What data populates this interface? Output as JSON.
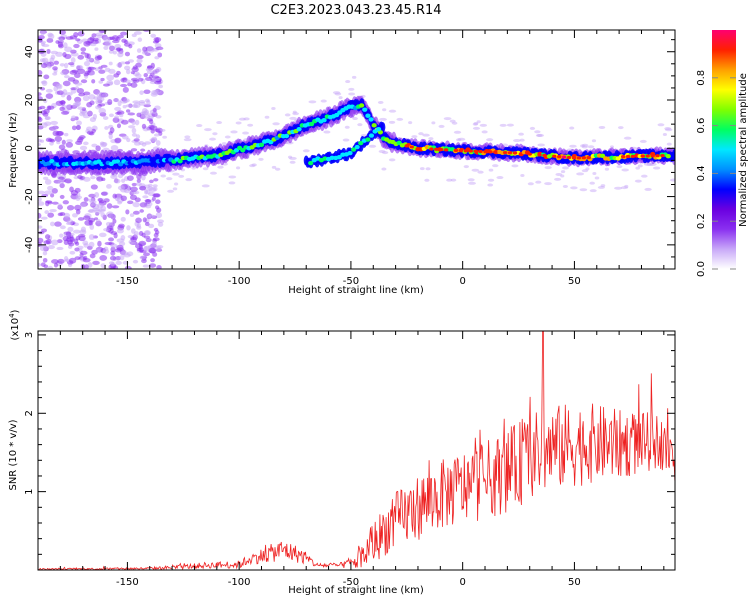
{
  "title": "C2E3.2023.043.23.45.R14",
  "chart_data": [
    {
      "type": "heatmap",
      "name": "spectrogram",
      "xlabel": "Height of straight line (km)",
      "ylabel": "Frequency (Hz)",
      "xlim": [
        -190,
        95
      ],
      "ylim": [
        -50,
        49
      ],
      "xticks": [
        -150,
        -100,
        -50,
        0,
        50
      ],
      "yticks": [
        -40,
        -20,
        0,
        20,
        40
      ],
      "ridge": {
        "x": [
          -190,
          -150,
          -130,
          -110,
          -90,
          -80,
          -72,
          -62,
          -50,
          -45,
          -40,
          -35,
          -30,
          -25,
          -20,
          0,
          25,
          50,
          90
        ],
        "freq": [
          -6,
          -6,
          -5,
          -3,
          2,
          5,
          9,
          12,
          17,
          18,
          10,
          4,
          2,
          1,
          0,
          -1,
          -2,
          -4,
          -3
        ]
      },
      "secondary_ridge": {
        "x": [
          -70,
          -60,
          -50,
          -45,
          -40,
          -35
        ],
        "freq": [
          -6,
          -4,
          -2,
          2,
          6,
          10
        ]
      },
      "colorbar": {
        "label": "Normalized spectral amplitude",
        "ticks": [
          0.0,
          0.2,
          0.4,
          0.6,
          0.8
        ],
        "tick_labels": [
          "0.0",
          "0.2",
          "0.4",
          "0.6",
          "0.8"
        ],
        "range": [
          0,
          1
        ],
        "colors": [
          "#ffffff",
          "#c8a8f8",
          "#8a30f0",
          "#6a00e0",
          "#0000ff",
          "#0090ff",
          "#00e8ff",
          "#00ff60",
          "#80ff00",
          "#ffff00",
          "#ffa000",
          "#ff2000",
          "#ff0070"
        ]
      }
    },
    {
      "type": "line",
      "name": "snr",
      "xlabel": "Height of straight line (km)",
      "ylabel": "SNR (10 * v/v)",
      "yscale_label": "(x10",
      "yscale_exp": "4",
      "yscale_close": ")",
      "xlim": [
        -190,
        95
      ],
      "ylim": [
        0,
        3.05
      ],
      "xticks": [
        -150,
        -100,
        -50,
        0,
        50
      ],
      "yticks": [
        1,
        2,
        3
      ],
      "color": "#ee2222",
      "envelope": {
        "x": [
          -190,
          -140,
          -125,
          -115,
          -100,
          -95,
          -85,
          -80,
          -72,
          -65,
          -55,
          -48,
          -44,
          -40,
          -35,
          -30,
          -20,
          -10,
          0,
          10,
          20,
          25,
          30,
          40,
          50,
          60,
          70,
          80,
          88,
          93,
          95
        ],
        "mean": [
          0.01,
          0.02,
          0.04,
          0.06,
          0.07,
          0.14,
          0.22,
          0.26,
          0.18,
          0.06,
          0.06,
          0.1,
          0.2,
          0.35,
          0.5,
          0.62,
          0.8,
          0.95,
          1.05,
          1.15,
          1.25,
          1.35,
          1.45,
          1.55,
          1.6,
          1.62,
          1.6,
          1.62,
          1.65,
          1.45,
          1.35
        ],
        "spread": [
          0.01,
          0.015,
          0.03,
          0.04,
          0.05,
          0.07,
          0.12,
          0.14,
          0.1,
          0.03,
          0.03,
          0.1,
          0.18,
          0.28,
          0.32,
          0.38,
          0.42,
          0.45,
          0.48,
          0.5,
          0.52,
          0.55,
          0.55,
          0.55,
          0.55,
          0.5,
          0.45,
          0.4,
          0.35,
          0.3,
          0.3
        ]
      },
      "peak": {
        "x": 36,
        "y": 3.05
      }
    }
  ]
}
